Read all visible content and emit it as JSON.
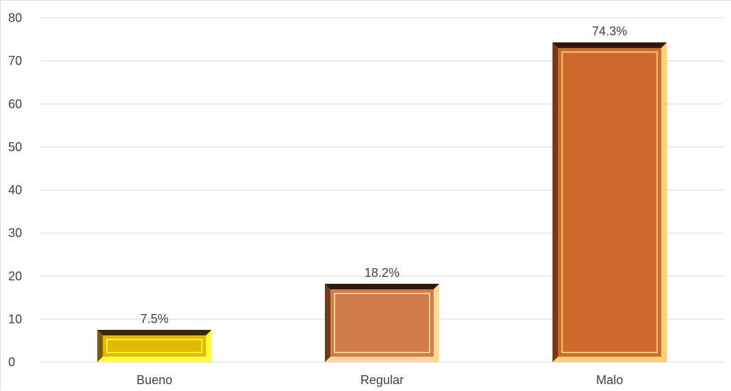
{
  "chart_data": {
    "type": "bar",
    "categories": [
      "Bueno",
      "Regular",
      "Malo"
    ],
    "values": [
      7.5,
      18.2,
      74.3
    ],
    "data_labels": [
      "7.5%",
      "18.2%",
      "74.3%"
    ],
    "ylim": [
      0,
      80
    ],
    "yticks": [
      "0",
      "10",
      "20",
      "30",
      "40",
      "50",
      "60",
      "70",
      "80"
    ],
    "grid": true,
    "legend": "none",
    "colors": {
      "Bueno": {
        "face": "#e5b90a",
        "light": "#ffff3c",
        "dark": "#7a5a00",
        "top": "#3a2a00"
      },
      "Regular": {
        "face": "#d07d4b",
        "light": "#ffd89a",
        "dark": "#6e3c1e",
        "top": "#2e1a0c"
      },
      "Malo": {
        "face": "#cd6a2c",
        "light": "#ffd27a",
        "dark": "#7a3812",
        "top": "#301608"
      }
    }
  }
}
